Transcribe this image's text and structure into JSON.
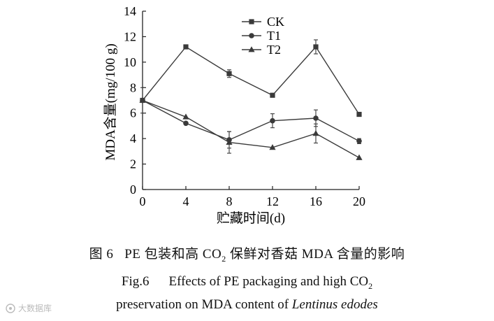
{
  "chart_data": {
    "type": "line",
    "title": "",
    "xlabel": "贮藏时间(d)",
    "ylabel": "MDA含量(mg/100 g)",
    "x": [
      0,
      4,
      8,
      12,
      16,
      20
    ],
    "xticks": [
      "0",
      "4",
      "8",
      "12",
      "16",
      "20"
    ],
    "yticks": [
      "0",
      "2",
      "4",
      "6",
      "8",
      "10",
      "12",
      "14"
    ],
    "xlim": [
      0,
      20
    ],
    "ylim": [
      0,
      14
    ],
    "legend_position": "top-center",
    "series": [
      {
        "name": "CK",
        "marker": "square",
        "values": [
          7.0,
          11.2,
          9.1,
          7.4,
          11.2,
          5.9
        ],
        "errors": [
          1.0,
          0,
          0.3,
          0,
          0.55,
          0
        ]
      },
      {
        "name": "T1",
        "marker": "circle",
        "values": [
          7.0,
          5.2,
          3.9,
          5.4,
          5.6,
          3.8
        ],
        "errors": [
          0,
          0,
          0.65,
          0.55,
          0.65,
          0.2
        ]
      },
      {
        "name": "T2",
        "marker": "triangle",
        "values": [
          7.0,
          5.7,
          3.7,
          3.3,
          4.4,
          2.5
        ],
        "errors": [
          0,
          0,
          0.85,
          0,
          0.75,
          0
        ]
      }
    ]
  },
  "caption": {
    "cn_prefix": "图 6",
    "cn_text_a": "PE 包装和高 CO",
    "cn_sub": "2",
    "cn_text_b": " 保鲜对香菇 MDA 含量的影响",
    "en_prefix": "Fig.6",
    "en_line1_a": "Effects of PE packaging and high CO",
    "en_line1_sub": "2",
    "en_line2_a": "preservation on MDA content of ",
    "en_line2_italic": "Lentinus edodes"
  },
  "watermark": {
    "text": "大数据库"
  }
}
